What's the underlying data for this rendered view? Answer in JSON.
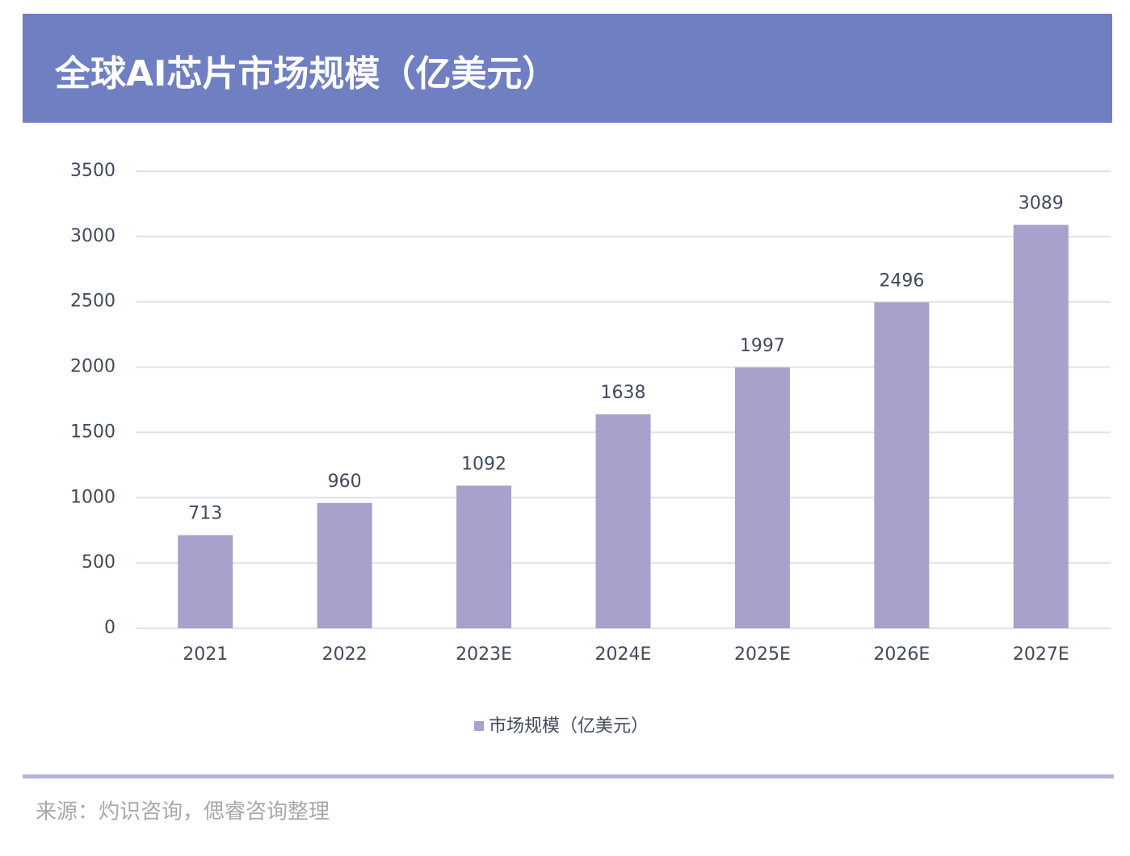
{
  "chart_data": {
    "type": "bar",
    "title": "全球AI芯片市场规模（亿美元）",
    "categories": [
      "2021",
      "2022",
      "2023E",
      "2024E",
      "2025E",
      "2026E",
      "2027E"
    ],
    "series": [
      {
        "name": "市场规模（亿美元）",
        "color": "#a9a0cc",
        "values": [
          713,
          960,
          1092,
          1638,
          1997,
          2496,
          3089
        ]
      }
    ],
    "ylim": [
      0,
      3500
    ],
    "yticks": [
      0,
      500,
      1000,
      1500,
      2000,
      2500,
      3000,
      3500
    ],
    "grid": true,
    "source": "来源：灼识咨询，偲睿咨询整理"
  }
}
